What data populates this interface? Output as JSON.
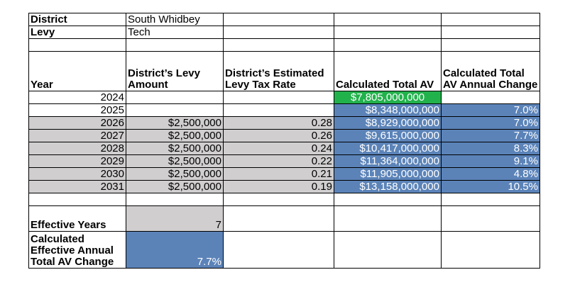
{
  "info": {
    "district_label": "District",
    "district_value": "South Whidbey",
    "levy_label": "Levy",
    "levy_value": "Tech"
  },
  "headers": {
    "year": "Year",
    "levy_amount": "District’s Levy Amount",
    "tax_rate": "District’s Estimated Levy Tax Rate",
    "total_av": "Calculated Total AV",
    "av_change": "Calculated Total AV Annual Change"
  },
  "rows": [
    {
      "year": "2024",
      "amount": "",
      "rate": "",
      "av": "$7,805,000,000",
      "change": ""
    },
    {
      "year": "2025",
      "amount": "",
      "rate": "",
      "av": "$8,348,000,000",
      "change": "7.0%"
    },
    {
      "year": "2026",
      "amount": "$2,500,000",
      "rate": "0.28",
      "av": "$8,929,000,000",
      "change": "7.0%"
    },
    {
      "year": "2027",
      "amount": "$2,500,000",
      "rate": "0.26",
      "av": "$9,615,000,000",
      "change": "7.7%"
    },
    {
      "year": "2028",
      "amount": "$2,500,000",
      "rate": "0.24",
      "av": "$10,417,000,000",
      "change": "8.3%"
    },
    {
      "year": "2029",
      "amount": "$2,500,000",
      "rate": "0.22",
      "av": "$11,364,000,000",
      "change": "9.1%"
    },
    {
      "year": "2030",
      "amount": "$2,500,000",
      "rate": "0.21",
      "av": "$11,905,000,000",
      "change": "4.8%"
    },
    {
      "year": "2031",
      "amount": "$2,500,000",
      "rate": "0.19",
      "av": "$13,158,000,000",
      "change": "10.5%"
    }
  ],
  "summary": {
    "effective_years_label": "Effective Years",
    "effective_years_value": "7",
    "avg_change_label": "Calculated Effective Annual Total AV Change",
    "avg_change_value": "7.7%"
  },
  "colors": {
    "gray_fill": "#d0cece",
    "blue_fill": "#5b83b8",
    "green_fill": "#22b24c"
  }
}
